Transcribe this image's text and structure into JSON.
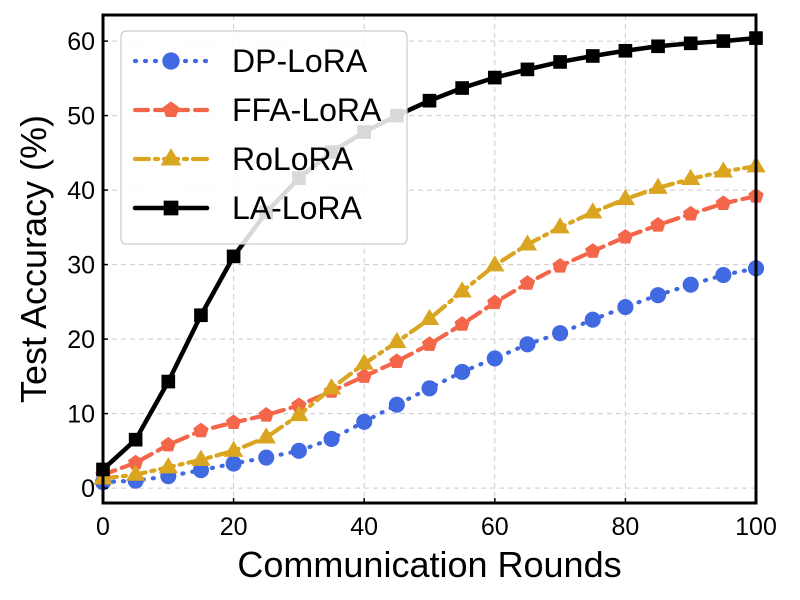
{
  "chart_data": {
    "type": "line",
    "title": "",
    "xlabel": "Communication Rounds",
    "ylabel": "Test Accuracy (%)",
    "xlim": [
      0,
      100
    ],
    "ylim": [
      -2,
      63.5
    ],
    "xticks": [
      0,
      20,
      40,
      60,
      80,
      100
    ],
    "yticks": [
      0,
      10,
      20,
      30,
      40,
      50,
      60
    ],
    "xtick_labels": [
      "0",
      "20",
      "40",
      "60",
      "80",
      "100"
    ],
    "ytick_labels": [
      "0",
      "10",
      "20",
      "30",
      "40",
      "50",
      "60"
    ],
    "grid": true,
    "legend_position": "upper-left",
    "x": [
      0,
      5,
      10,
      15,
      20,
      25,
      30,
      35,
      40,
      45,
      50,
      55,
      60,
      65,
      70,
      75,
      80,
      85,
      90,
      95,
      100
    ],
    "series": [
      {
        "name": "DP-LoRA",
        "color": "#4169e1",
        "line_style": "dotted",
        "marker": "circle",
        "values": [
          0.8,
          1.0,
          1.6,
          2.4,
          3.3,
          4.1,
          5.0,
          6.6,
          8.9,
          11.2,
          13.4,
          15.6,
          17.4,
          19.3,
          20.8,
          22.6,
          24.3,
          25.9,
          27.3,
          28.6,
          29.5
        ]
      },
      {
        "name": "FFA-LoRA",
        "color": "#f4664a",
        "line_style": "dashed",
        "marker": "pentagon",
        "values": [
          1.8,
          3.4,
          5.8,
          7.7,
          8.8,
          9.8,
          11.1,
          13.0,
          15.0,
          17.0,
          19.3,
          22.0,
          24.9,
          27.5,
          29.8,
          31.8,
          33.7,
          35.3,
          36.8,
          38.2,
          39.2
        ]
      },
      {
        "name": "RoLoRA",
        "color": "#daa520",
        "line_style": "dashdot",
        "marker": "triangle",
        "values": [
          1.3,
          1.8,
          2.8,
          3.8,
          5.0,
          6.8,
          9.8,
          13.4,
          16.7,
          19.6,
          22.7,
          26.4,
          29.9,
          32.7,
          35.0,
          37.0,
          38.8,
          40.3,
          41.5,
          42.5,
          43.2
        ]
      },
      {
        "name": "LA-LoRA",
        "color": "#000000",
        "line_style": "solid",
        "marker": "square",
        "values": [
          2.5,
          6.5,
          14.3,
          23.2,
          31.1,
          37.0,
          41.6,
          45.1,
          47.8,
          50.0,
          52.0,
          53.7,
          55.1,
          56.2,
          57.2,
          58.0,
          58.7,
          59.3,
          59.7,
          60.0,
          60.4
        ]
      }
    ]
  }
}
